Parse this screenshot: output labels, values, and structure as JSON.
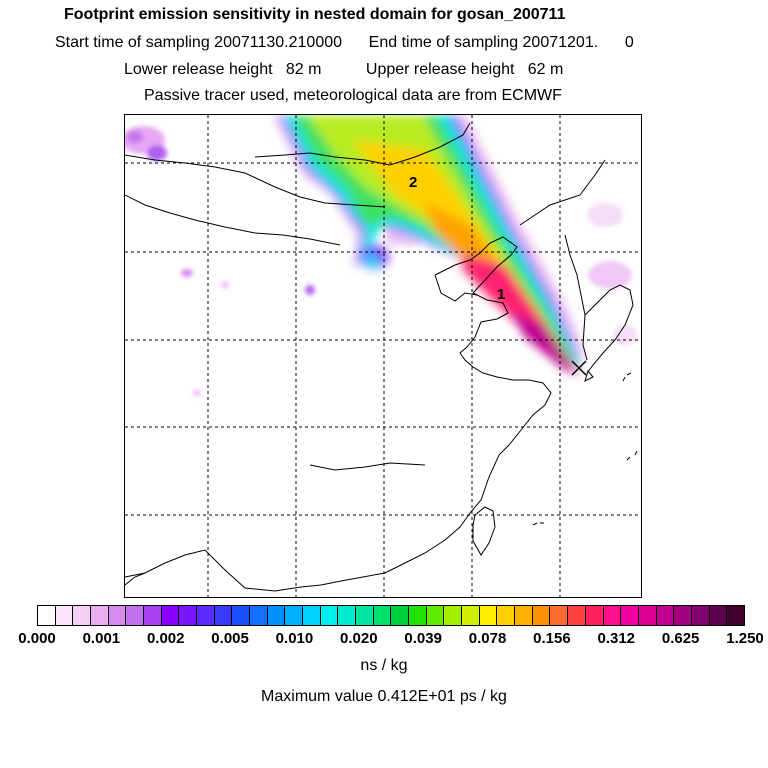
{
  "header": {
    "title": "Footprint emission sensitivity in nested domain for gosan_200711",
    "sampling": "Start time of sampling 20071130.210000      End time of sampling 20071201.      0",
    "release": "Lower release height   82 m          Upper release height   62 m",
    "tracer": "Passive tracer used, meteorological data are from ECMWF"
  },
  "map": {
    "labels": [
      "1",
      "2"
    ],
    "receptor_marker": "x-marker"
  },
  "colorbar": {
    "colors": [
      "#ffffff",
      "#fbe6fb",
      "#f5cdf5",
      "#ecaef2",
      "#d58af0",
      "#c26ff0",
      "#a63ff0",
      "#8a00ff",
      "#7a16ff",
      "#5a2aff",
      "#3a3aff",
      "#1a50ff",
      "#1070ff",
      "#0090ff",
      "#00b0ff",
      "#00d0ff",
      "#00f0f0",
      "#00ecd0",
      "#00e6a0",
      "#00de70",
      "#00d040",
      "#20e000",
      "#60ec00",
      "#a0f000",
      "#d0f000",
      "#ffee00",
      "#ffd000",
      "#ffb000",
      "#ff9000",
      "#ff6a30",
      "#ff4040",
      "#ff2060",
      "#ff1090",
      "#f000a0",
      "#dd0090",
      "#c00090",
      "#a00080",
      "#800070",
      "#600050",
      "#400030"
    ],
    "ticks": [
      "0.000",
      "0.001",
      "0.002",
      "0.005",
      "0.010",
      "0.020",
      "0.039",
      "0.078",
      "0.156",
      "0.312",
      "0.625",
      "1.250"
    ],
    "unit": "ns / kg"
  },
  "footer": {
    "max_value": "Maximum value  0.412E+01 ps / kg"
  }
}
